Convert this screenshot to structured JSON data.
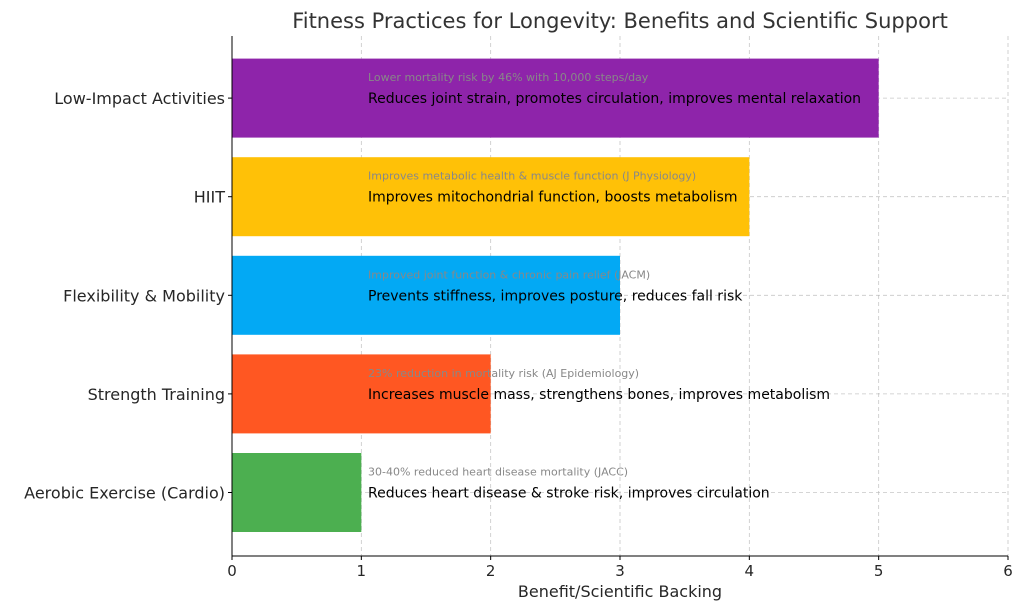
{
  "chart_data": {
    "type": "bar",
    "orientation": "horizontal",
    "title": "Fitness Practices for Longevity: Benefits and Scientific Support",
    "xlabel": "Benefit/Scientific Backing",
    "ylabel": "",
    "xlim": [
      0,
      6
    ],
    "xticks": [
      0,
      1,
      2,
      3,
      4,
      5,
      6
    ],
    "grid": true,
    "categories": [
      "Aerobic Exercise (Cardio)",
      "Strength Training",
      "Flexibility & Mobility",
      "HIIT",
      "Low-Impact Activities"
    ],
    "values": [
      1,
      2,
      3,
      4,
      5
    ],
    "colors": [
      "#4caf50",
      "#ff5722",
      "#03a9f4",
      "#ffc107",
      "#8e24aa"
    ],
    "benefits": [
      "Reduces heart disease & stroke risk, improves circulation",
      "Increases muscle mass, strengthens bones, improves metabolism",
      "Prevents stiffness, improves posture, reduces fall risk",
      "Improves mitochondrial function, boosts metabolism",
      "Reduces joint strain, promotes circulation, improves mental relaxation"
    ],
    "scientific_support": [
      "30-40% reduced heart disease mortality (JACC)",
      "23% reduction in mortality risk (AJ Epidemiology)",
      "Improved joint function & chronic pain relief (JACM)",
      "Improves metabolic health & muscle function (J Physiology)",
      "Lower mortality risk by 46% with 10,000 steps/day"
    ]
  }
}
